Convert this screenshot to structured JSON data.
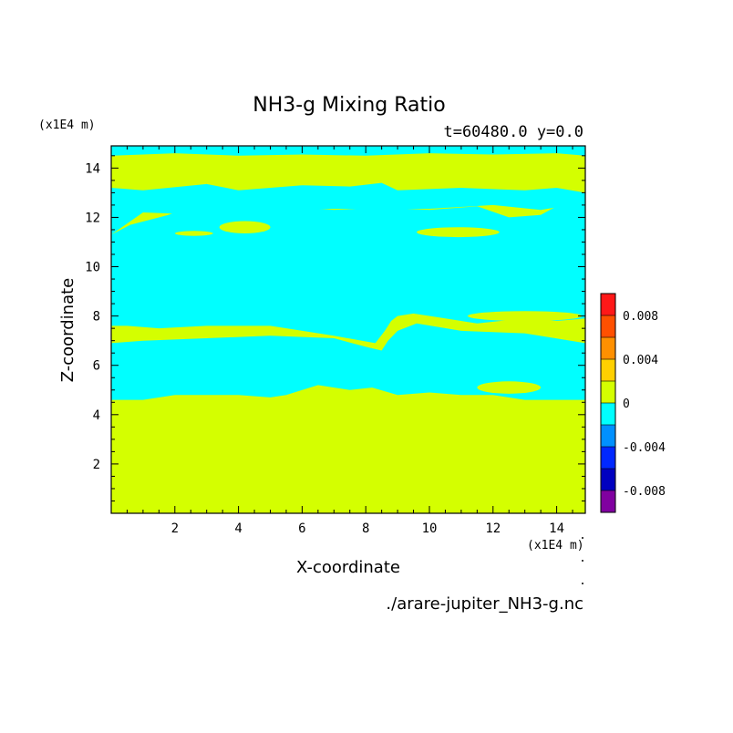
{
  "colors": {
    "positive_small": "#d4ff00",
    "negative_small": "#00ffff",
    "frame": "#000000"
  },
  "chart_data": {
    "type": "heatmap",
    "title": "NH3-g Mixing Ratio",
    "subtitle": "t=60480.0 y=0.0",
    "xlabel": "X-coordinate",
    "ylabel": "Z-coordinate",
    "x_unit": "(x1E4 m)",
    "y_unit": "(x1E4 m)",
    "xlim": [
      0,
      14.9
    ],
    "ylim": [
      0,
      14.9
    ],
    "x_ticks": [
      2,
      4,
      6,
      8,
      10,
      12,
      14
    ],
    "x_tick_labels": [
      "2",
      "4",
      "6",
      "8",
      "10",
      "12",
      "14"
    ],
    "y_ticks": [
      2,
      4,
      6,
      8,
      10,
      12,
      14
    ],
    "y_tick_labels": [
      "2",
      "4",
      "6",
      "8",
      "10",
      "12",
      "14"
    ],
    "grid": false,
    "background_class_color": "#d4ff00",
    "regions": [
      {
        "value_class": "-0.002 to 0",
        "color": "#00ffff",
        "polygon": [
          [
            0,
            14.9
          ],
          [
            14.9,
            14.9
          ],
          [
            14.9,
            14.5
          ],
          [
            14,
            14.6
          ],
          [
            12,
            14.55
          ],
          [
            10,
            14.6
          ],
          [
            8,
            14.5
          ],
          [
            6,
            14.55
          ],
          [
            4,
            14.5
          ],
          [
            2,
            14.6
          ],
          [
            0,
            14.5
          ]
        ]
      },
      {
        "value_class": "-0.002 to 0",
        "color": "#00ffff",
        "polygon": [
          [
            0,
            13.2
          ],
          [
            1,
            13.1
          ],
          [
            3,
            13.35
          ],
          [
            4,
            13.1
          ],
          [
            6,
            13.3
          ],
          [
            7.5,
            13.25
          ],
          [
            8.5,
            13.4
          ],
          [
            9,
            13.1
          ],
          [
            11,
            13.2
          ],
          [
            13,
            13.1
          ],
          [
            14,
            13.2
          ],
          [
            14.9,
            13
          ],
          [
            14.9,
            12.6
          ],
          [
            13.5,
            12.3
          ],
          [
            12,
            12.5
          ],
          [
            10,
            12.35
          ],
          [
            7,
            12.35
          ],
          [
            5,
            12.3
          ],
          [
            3,
            12.1
          ],
          [
            1,
            12.2
          ],
          [
            0,
            11.3
          ]
        ]
      },
      {
        "value_class": "-0.002 to 0",
        "color": "#00ffff",
        "polygon": [
          [
            0,
            11.3
          ],
          [
            0.6,
            11.7
          ],
          [
            1.8,
            12.1
          ],
          [
            2.4,
            12.4
          ],
          [
            3,
            12.2
          ],
          [
            4.5,
            12.3
          ],
          [
            6,
            12.4
          ],
          [
            7,
            12.3
          ],
          [
            8.5,
            12.4
          ],
          [
            10,
            12.3
          ],
          [
            11.5,
            12.45
          ],
          [
            12.5,
            12.0
          ],
          [
            13.5,
            12.1
          ],
          [
            14,
            12.45
          ],
          [
            14.9,
            12.6
          ],
          [
            14.9,
            7.9
          ],
          [
            14,
            7.8
          ],
          [
            13,
            7.9
          ],
          [
            11.5,
            7.7
          ],
          [
            10.5,
            7.9
          ],
          [
            9.5,
            8.1
          ],
          [
            9,
            8.0
          ],
          [
            8.8,
            7.8
          ],
          [
            8.6,
            7.4
          ],
          [
            8.3,
            6.9
          ],
          [
            7,
            7.2
          ],
          [
            5,
            7.6
          ],
          [
            3,
            7.6
          ],
          [
            1.5,
            7.5
          ],
          [
            0.5,
            7.6
          ],
          [
            0,
            7.6
          ]
        ]
      },
      {
        "value_class": "-0.002 to 0",
        "color": "#00ffff",
        "polygon": [
          [
            0,
            6.9
          ],
          [
            1,
            7.0
          ],
          [
            3,
            7.1
          ],
          [
            5,
            7.2
          ],
          [
            7,
            7.1
          ],
          [
            8,
            6.75
          ],
          [
            8.5,
            6.6
          ],
          [
            8.7,
            7.0
          ],
          [
            9,
            7.4
          ],
          [
            9.6,
            7.7
          ],
          [
            11,
            7.4
          ],
          [
            13,
            7.3
          ],
          [
            14.9,
            6.9
          ],
          [
            14.9,
            4.6
          ],
          [
            13,
            4.6
          ],
          [
            12,
            4.8
          ],
          [
            11,
            4.8
          ],
          [
            10,
            4.9
          ],
          [
            9,
            4.8
          ],
          [
            8.2,
            5.1
          ],
          [
            7.5,
            5.0
          ],
          [
            6.5,
            5.2
          ],
          [
            5.5,
            4.8
          ],
          [
            5,
            4.7
          ],
          [
            4,
            4.8
          ],
          [
            2,
            4.8
          ],
          [
            1,
            4.6
          ],
          [
            0,
            4.6
          ]
        ]
      }
    ],
    "islands": [
      {
        "value_class": "0 to 0.002",
        "color": "#d4ff00",
        "cx": 2.6,
        "cy": 11.35,
        "rx": 0.6,
        "ry": 0.1
      },
      {
        "value_class": "0 to 0.002",
        "color": "#d4ff00",
        "cx": 4.2,
        "cy": 11.6,
        "rx": 0.8,
        "ry": 0.25
      },
      {
        "value_class": "0 to 0.002",
        "color": "#d4ff00",
        "cx": 10.9,
        "cy": 11.4,
        "rx": 1.3,
        "ry": 0.2
      },
      {
        "value_class": "-0.002 to 0",
        "color": "#00ffff",
        "cx": 12.9,
        "cy": 10.0,
        "rx": 0.35,
        "ry": 0.12
      },
      {
        "value_class": "0 to 0.002",
        "color": "#d4ff00",
        "cx": 13.0,
        "cy": 8.0,
        "rx": 1.8,
        "ry": 0.2
      },
      {
        "value_class": "0 to 0.002",
        "color": "#d4ff00",
        "cx": 12.5,
        "cy": 5.1,
        "rx": 1.0,
        "ry": 0.25
      }
    ],
    "colorbar": {
      "levels": [
        -0.01,
        -0.008,
        -0.006,
        -0.004,
        -0.002,
        0,
        0.002,
        0.004,
        0.006,
        0.008,
        0.01
      ],
      "colors": [
        "#8000a0",
        "#0000c0",
        "#0028ff",
        "#0090ff",
        "#00ffff",
        "#d4ff00",
        "#ffd000",
        "#ff9000",
        "#ff5000",
        "#ff1818",
        "#ffb0b0"
      ],
      "tick_values": [
        -0.008,
        -0.004,
        0,
        0.004,
        0.008
      ],
      "tick_labels": [
        "-0.008",
        "-0.004",
        "0",
        "0.004",
        "0.008"
      ]
    },
    "footer": "./arare-jupiter_NH3-g.nc"
  }
}
